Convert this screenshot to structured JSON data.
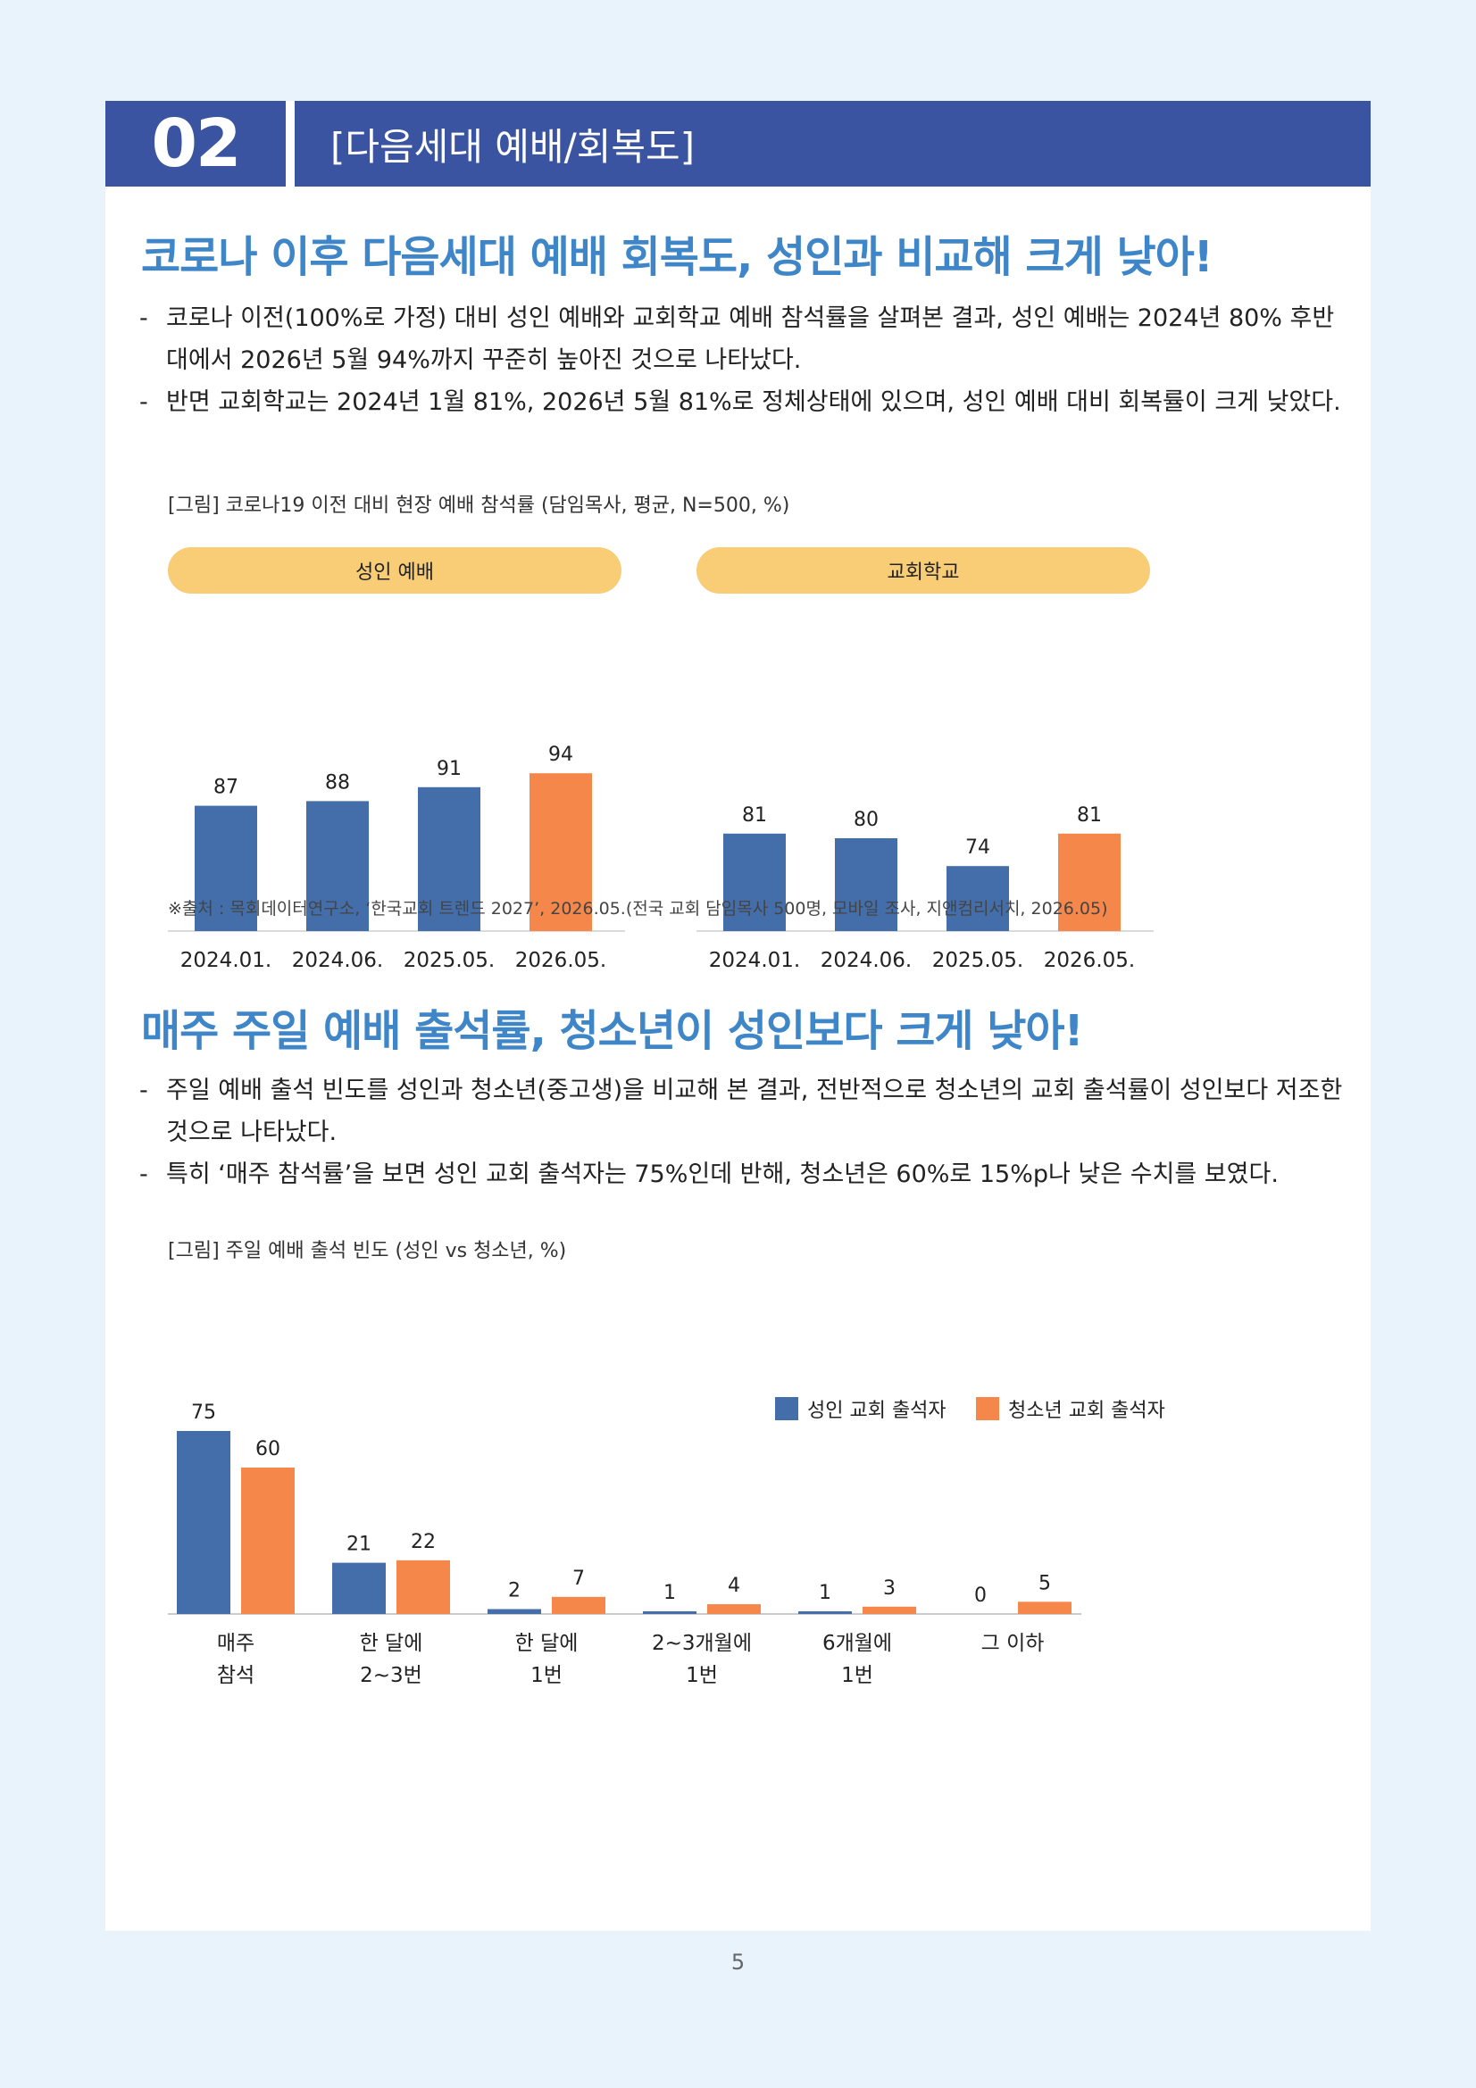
{
  "section": {
    "number": "02",
    "title": "[다음세대 예배/회복도]"
  },
  "block1": {
    "heading": "코로나 이후 다음세대 예배 회복도, 성인과 비교해 크게 낮아!",
    "bullets": [
      "코로나 이전(100%로 가정) 대비 성인 예배와 교회학교 예배 참석률을 살펴본 결과, 성인 예배는 2024년 80% 후반대에서 2026년 5월 94%까지 꾸준히 높아진 것으로 나타났다.",
      "반면 교회학교는 2024년 1월 81%, 2026년 5월 81%로 정체상태에 있으며, 성인 예배 대비 회복률이 크게 낮았다."
    ],
    "caption": "[그림] 코로나19 이전 대비 현장 예배 참석률 (담임목사, 평균, N=500, %)",
    "source": "※출처 : 목회데이터연구소, ‘한국교회 트렌드 2027’, 2026.05.(전국 교회 담임목사 500명, 모바일 조사, 지앤컴리서치, 2026.05)"
  },
  "block2": {
    "heading": "매주 주일 예배 출석률, 청소년이 성인보다 크게 낮아!",
    "bullets": [
      "주일 예배 출석 빈도를 성인과 청소년(중고생)을 비교해 본 결과, 전반적으로 청소년의 교회 출석률이 성인보다 저조한 것으로 나타났다.",
      "특히 ‘매주 참석률’을 보면 성인 교회 출석자는 75%인데 반해, 청소년은 60%로 15%p나 낮은 수치를 보였다."
    ],
    "caption": "[그림] 주일 예배 출석 빈도 (성인 vs 청소년, %)"
  },
  "colors": {
    "primary": "#3b54a1",
    "heading": "#3f86c8",
    "bar_blue": "#436eaa",
    "bar_orange": "#f5874a",
    "pill": "#f9cc76"
  },
  "chart_data": [
    {
      "type": "bar",
      "title": "성인 예배",
      "categories": [
        "2024.01.",
        "2024.06.",
        "2025.05.",
        "2026.05."
      ],
      "values": [
        87,
        88,
        91,
        94
      ],
      "highlight_last": true,
      "ylim": [
        0,
        100
      ]
    },
    {
      "type": "bar",
      "title": "교회학교",
      "categories": [
        "2024.01.",
        "2024.06.",
        "2025.05.",
        "2026.05."
      ],
      "values": [
        81,
        80,
        74,
        81
      ],
      "highlight_last": true,
      "ylim": [
        0,
        100
      ]
    },
    {
      "type": "bar",
      "categories": [
        "매주\n참석",
        "한 달에\n2~3번",
        "한 달에\n1번",
        "2~3개월에\n1번",
        "6개월에\n1번",
        "그 이하"
      ],
      "series": [
        {
          "name": "성인 교회 출석자",
          "values": [
            75,
            21,
            2,
            1,
            1,
            0
          ]
        },
        {
          "name": "청소년 교회 출석자",
          "values": [
            60,
            22,
            7,
            4,
            3,
            5
          ]
        }
      ],
      "legend": "top-right",
      "ylim": [
        0,
        75
      ]
    }
  ],
  "page_number": "5"
}
